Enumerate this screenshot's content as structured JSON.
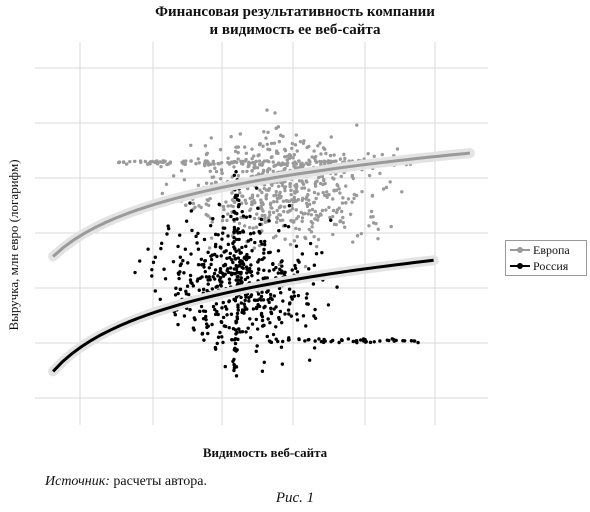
{
  "chart_data": {
    "type": "scatter",
    "title_line1": "Финансовая результативность компании",
    "title_line2": "и видимость ее веб-сайта",
    "xlabel": "Видимость веб-сайта",
    "ylabel": "Выручка, млн евро (логарифм)",
    "grid": true,
    "axis_ticks_labeled": false,
    "legend_placement": "right",
    "series": [
      {
        "name": "Европа",
        "color": "#9a9a9a",
        "trend": "log-fit, upper",
        "cluster_center": [
          0.55,
          0.62
        ],
        "count": 700
      },
      {
        "name": "Россия",
        "color": "#000000",
        "trend": "log-fit, lower",
        "cluster_center": [
          0.45,
          0.38
        ],
        "count": 650
      }
    ]
  },
  "source": {
    "prefix": "Источник:",
    "text": " расчеты автора."
  },
  "figure_caption": "Рис. 1"
}
